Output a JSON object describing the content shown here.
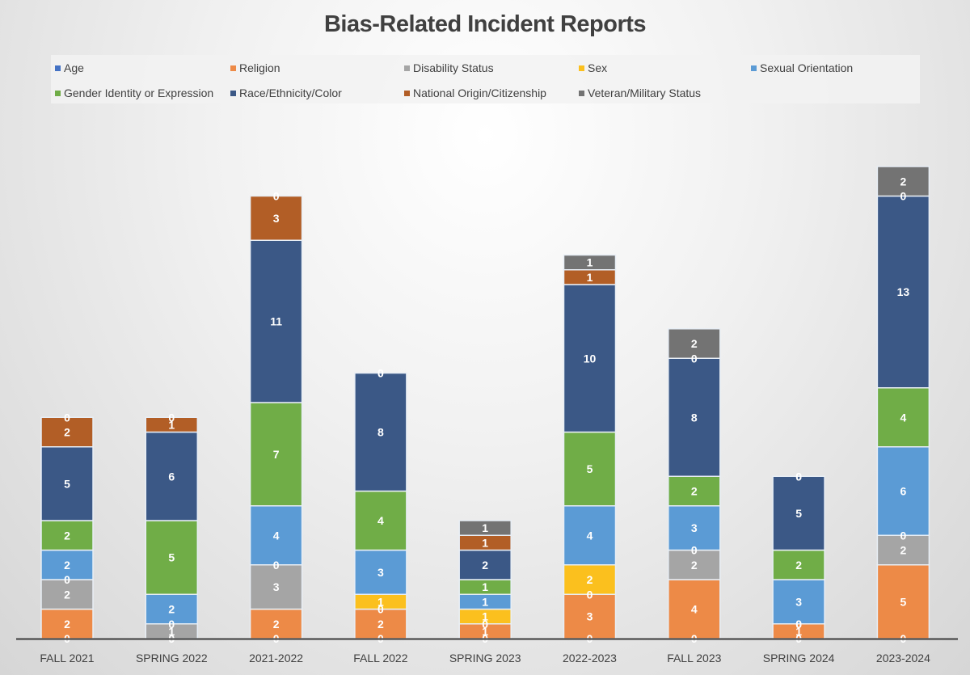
{
  "chart_data": {
    "type": "bar",
    "stacked": true,
    "title": "Bias-Related Incident Reports",
    "xlabel": "",
    "ylabel": "",
    "ylim": [
      0,
      32
    ],
    "grid": false,
    "legend_position": "top",
    "categories": [
      "FALL 2021",
      "SPRING 2022",
      "2021-2022",
      "FALL 2022",
      "SPRING 2023",
      "2022-2023",
      "FALL 2023",
      "SPRING 2024",
      "2023-2024"
    ],
    "series": [
      {
        "name": "Age",
        "color": "#4472c4",
        "values": [
          0,
          0,
          0,
          0,
          0,
          0,
          0,
          0,
          0
        ]
      },
      {
        "name": "Religion",
        "color": "#ed8a47",
        "values": [
          2,
          0,
          2,
          2,
          1,
          3,
          4,
          1,
          5
        ]
      },
      {
        "name": "Disability Status",
        "color": "#a5a5a5",
        "values": [
          2,
          1,
          3,
          0,
          0,
          0,
          2,
          0,
          2
        ]
      },
      {
        "name": "Sex",
        "color": "#fbc01e",
        "values": [
          0,
          0,
          0,
          1,
          1,
          2,
          0,
          0,
          0
        ]
      },
      {
        "name": "Sexual Orientation",
        "color": "#5b9bd5",
        "values": [
          2,
          2,
          4,
          3,
          1,
          4,
          3,
          3,
          6
        ]
      },
      {
        "name": "Gender Identity or Expression",
        "color": "#70ad47",
        "values": [
          2,
          5,
          7,
          4,
          1,
          5,
          2,
          2,
          4
        ]
      },
      {
        "name": "Race/Ethnicity/Color",
        "color": "#3b5886",
        "values": [
          5,
          6,
          11,
          8,
          2,
          10,
          8,
          5,
          13
        ]
      },
      {
        "name": "National Origin/Citizenship",
        "color": "#b25e26",
        "values": [
          2,
          1,
          3,
          0,
          1,
          1,
          0,
          0,
          0
        ]
      },
      {
        "name": "Veteran/Military Status",
        "color": "#737373",
        "values": [
          0,
          0,
          0,
          0,
          1,
          1,
          2,
          0,
          2
        ]
      }
    ]
  }
}
